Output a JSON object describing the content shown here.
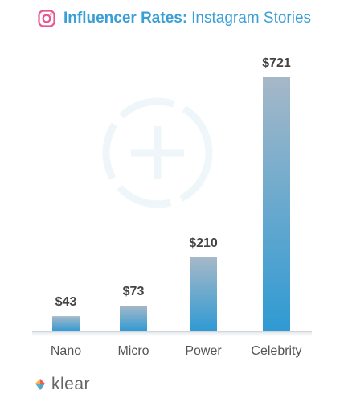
{
  "header": {
    "title_bold": "Influencer Rates:",
    "title_rest": "Instagram Stories",
    "icon": "instagram-icon"
  },
  "brand": {
    "logo_text": "klear",
    "icon": "klear-logo-icon"
  },
  "colors": {
    "accent": "#3a9fd4",
    "bar_top": "#a6b8c8",
    "bar_bottom": "#2f9ad3",
    "instagram": "#e8558f"
  },
  "chart_data": {
    "type": "bar",
    "categories": [
      "Nano",
      "Micro",
      "Power",
      "Celebrity"
    ],
    "values": [
      43,
      73,
      210,
      721
    ],
    "data_labels": [
      "$43",
      "$73",
      "$210",
      "$721"
    ],
    "title": "Influencer Rates: Instagram Stories",
    "xlabel": "",
    "ylabel": "",
    "ylim": [
      0,
      721
    ],
    "grid": false,
    "legend": "none"
  }
}
